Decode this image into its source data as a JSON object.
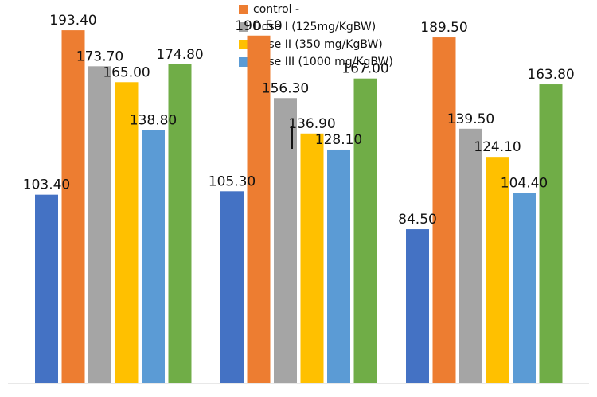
{
  "chart_data": {
    "type": "bar",
    "categories": [
      "",
      "",
      ""
    ],
    "series": [
      {
        "name": "",
        "color": "#4472C4",
        "values": [
          103.4,
          105.3,
          84.5
        ]
      },
      {
        "name": "control -",
        "color": "#ED7D31",
        "values": [
          193.4,
          190.5,
          189.5
        ]
      },
      {
        "name": "Dose I (125mg/KgBW)",
        "color": "#A5A5A5",
        "values": [
          173.7,
          156.3,
          139.5
        ]
      },
      {
        "name": "Dose II (350 mg/KgBW)",
        "color": "#FFC000",
        "values": [
          165.0,
          136.9,
          124.1
        ]
      },
      {
        "name": "Dose III (1000 mg/KgBW)",
        "color": "#5B9BD5",
        "values": [
          138.8,
          128.1,
          104.4
        ]
      },
      {
        "name": "",
        "color": "#70AD47",
        "values": [
          174.8,
          167.0,
          163.8
        ]
      }
    ],
    "data_labels": [
      [
        "103.40",
        "105.30",
        "84.50"
      ],
      [
        "193.40",
        "190.50",
        "189.50"
      ],
      [
        "173.70",
        "156.30",
        "139.50"
      ],
      [
        "165.00",
        "136.90",
        "124.10"
      ],
      [
        "138.80",
        "128.10",
        "104.40"
      ],
      [
        "174.80",
        "167.00",
        "163.80"
      ]
    ],
    "legend": [
      {
        "label": "control -",
        "color": "#ED7D31"
      },
      {
        "label": "Dose I (125mg/KgBW)",
        "color": "#A5A5A5"
      },
      {
        "label": "Dose II (350 mg/KgBW)",
        "color": "#FFC000"
      },
      {
        "label": "Dose III (1000 mg/KgBW)",
        "color": "#5B9BD5"
      }
    ],
    "legend_position": "top",
    "ylim": [
      0,
      210
    ],
    "grid": false,
    "title": "",
    "xlabel": "",
    "ylabel": ""
  }
}
